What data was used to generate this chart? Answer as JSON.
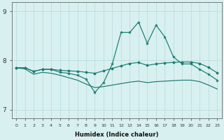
{
  "xlabel": "Humidex (Indice chaleur)",
  "bg_color": "#d8f0f0",
  "line_color": "#1a7a6e",
  "grid_color": "#b8dada",
  "x": [
    0,
    1,
    2,
    3,
    4,
    5,
    6,
    7,
    8,
    9,
    10,
    11,
    12,
    13,
    14,
    15,
    16,
    17,
    18,
    19,
    20,
    21,
    22,
    23
  ],
  "line1": [
    7.85,
    7.85,
    7.78,
    7.82,
    7.82,
    7.76,
    7.74,
    7.7,
    7.62,
    7.35,
    7.55,
    7.93,
    8.57,
    8.57,
    8.78,
    8.35,
    8.72,
    8.48,
    8.07,
    7.93,
    7.93,
    7.82,
    7.72,
    7.6
  ],
  "line2": [
    7.85,
    7.85,
    7.78,
    7.82,
    7.82,
    7.8,
    7.79,
    7.78,
    7.76,
    7.74,
    7.79,
    7.84,
    7.89,
    7.94,
    7.96,
    7.9,
    7.93,
    7.95,
    7.96,
    7.97,
    7.97,
    7.94,
    7.86,
    7.75
  ],
  "line3": [
    7.85,
    7.83,
    7.72,
    7.76,
    7.74,
    7.7,
    7.65,
    7.6,
    7.52,
    7.45,
    7.47,
    7.5,
    7.53,
    7.56,
    7.58,
    7.55,
    7.57,
    7.58,
    7.59,
    7.6,
    7.6,
    7.57,
    7.5,
    7.42
  ],
  "xlim": [
    -0.5,
    23.5
  ],
  "ylim": [
    6.82,
    9.18
  ],
  "yticks": [
    7,
    8,
    9
  ],
  "xticks": [
    0,
    1,
    2,
    3,
    4,
    5,
    6,
    7,
    8,
    9,
    10,
    11,
    12,
    13,
    14,
    15,
    16,
    17,
    18,
    19,
    20,
    21,
    22,
    23
  ]
}
